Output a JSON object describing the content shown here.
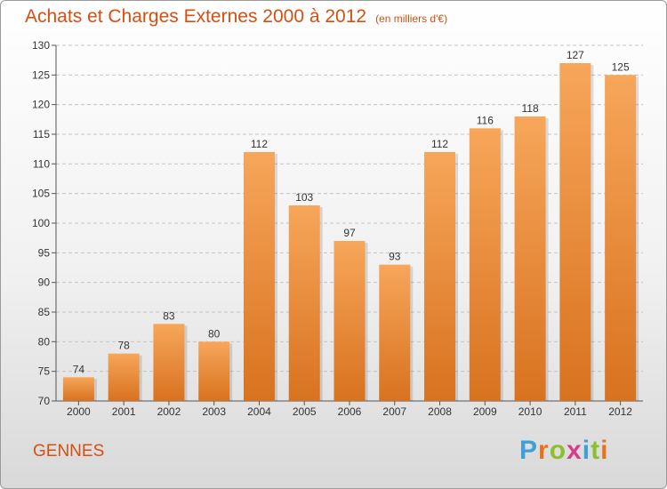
{
  "header": {
    "title": "Achats et Charges Externes 2000 à 2012",
    "subtitle": "(en milliers d'€)"
  },
  "footer": {
    "town": "GENNES",
    "logo_text": "Proxiti"
  },
  "colors": {
    "title": "#d64f10",
    "bar_light": "#f7a65a",
    "bar_dark": "#d8721f",
    "logo_letters": [
      "#3f9fd8",
      "#e8711e",
      "#8bbf2e",
      "#d63d8b",
      "#3f9fd8",
      "#8bbf2e",
      "#e8711e"
    ]
  },
  "chart_data": {
    "type": "bar",
    "title": "Achats et Charges Externes 2000 à 2012",
    "subtitle": "(en milliers d'€)",
    "categories": [
      "2000",
      "2001",
      "2002",
      "2003",
      "2004",
      "2005",
      "2006",
      "2007",
      "2008",
      "2009",
      "2010",
      "2011",
      "2012"
    ],
    "values": [
      74,
      78,
      83,
      80,
      112,
      103,
      97,
      93,
      112,
      116,
      118,
      127,
      125
    ],
    "ylim": [
      70,
      130
    ],
    "yticks": [
      70,
      75,
      80,
      85,
      90,
      95,
      100,
      105,
      110,
      115,
      120,
      125,
      130
    ],
    "grid": true,
    "data_labels": true
  }
}
